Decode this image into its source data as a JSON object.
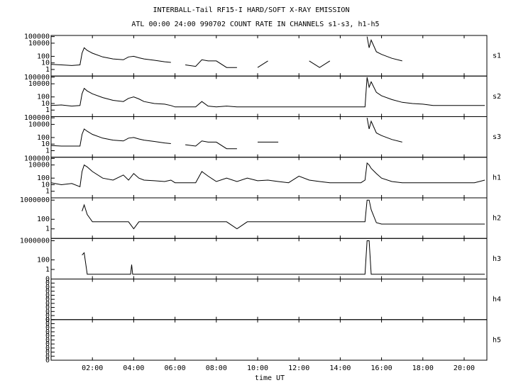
{
  "chart_data": [
    {
      "type": "line",
      "title": "INTERBALL-Tail RF15-I HARD/SOFT X-RAY EMISSION",
      "subtitle": "ATL 00:00 24:00 990702  COUNT RATE IN CHANNELS s1-s3, h1-h5",
      "label": "s1",
      "log": true,
      "color": "#000000",
      "ylim": [
        0.1,
        150000
      ],
      "yticks": [
        1,
        10,
        100,
        10000,
        100000
      ],
      "x": [
        0,
        0.5,
        1,
        1.4,
        1.5,
        1.6,
        1.75,
        2,
        2.5,
        3,
        3.5,
        3.75,
        4,
        4.25,
        4.5,
        5,
        5.5,
        5.8,
        6,
        6.5,
        7,
        7.3,
        7.6,
        8,
        8.5,
        9,
        9.5,
        10,
        10.5,
        11,
        11.5,
        12,
        12.5,
        13,
        13.5,
        14,
        14.5,
        15,
        15.2,
        15.3,
        15.4,
        15.5,
        15.75,
        16,
        16.5,
        17,
        17.5,
        18,
        18.5,
        19,
        19.5,
        20,
        20.5,
        21
      ],
      "values": [
        6,
        5,
        4,
        5,
        300,
        2000,
        800,
        300,
        80,
        40,
        30,
        80,
        100,
        60,
        40,
        25,
        15,
        12,
        null,
        5,
        3,
        30,
        20,
        20,
        2,
        2,
        null,
        2,
        20,
        null,
        20,
        null,
        20,
        2,
        20,
        null,
        20,
        null,
        null,
        100000,
        2000,
        30000,
        500,
        200,
        50,
        20,
        null,
        null,
        20,
        null,
        null,
        null,
        null,
        null
      ]
    },
    {
      "type": "line",
      "label": "s2",
      "log": true,
      "color": "#000000",
      "ylim": [
        0.1,
        150000
      ],
      "yticks": [
        1,
        10,
        100,
        10000,
        100000
      ],
      "x": [
        0,
        0.5,
        1,
        1.4,
        1.5,
        1.6,
        1.75,
        2,
        2.5,
        3,
        3.5,
        3.75,
        4,
        4.25,
        4.5,
        5,
        5.5,
        5.8,
        6,
        6.5,
        7,
        7.3,
        7.6,
        8,
        8.5,
        9,
        9.5,
        10,
        10.5,
        11,
        11.5,
        12,
        12.5,
        13,
        13.5,
        14,
        14.5,
        15,
        15.2,
        15.3,
        15.4,
        15.5,
        15.75,
        16,
        16.5,
        17,
        17.5,
        18,
        18.5,
        19,
        19.5,
        20,
        20.5,
        21
      ],
      "values": [
        5,
        6,
        4,
        5,
        300,
        2000,
        800,
        300,
        80,
        30,
        20,
        60,
        100,
        50,
        20,
        10,
        8,
        5,
        3,
        3,
        3,
        20,
        4,
        3,
        4,
        3,
        3,
        3,
        3,
        3,
        3,
        3,
        3,
        3,
        3,
        3,
        3,
        3,
        3,
        100000,
        3000,
        20000,
        500,
        150,
        40,
        15,
        10,
        8,
        5,
        5,
        5,
        5,
        5,
        5
      ]
    },
    {
      "type": "line",
      "label": "s3",
      "log": true,
      "color": "#000000",
      "ylim": [
        0.1,
        150000
      ],
      "yticks": [
        1,
        10,
        100,
        10000,
        100000
      ],
      "x": [
        0,
        0.5,
        1,
        1.4,
        1.5,
        1.6,
        1.75,
        2,
        2.5,
        3,
        3.5,
        3.75,
        4,
        4.25,
        4.5,
        5,
        5.5,
        5.8,
        6,
        6.5,
        7,
        7.3,
        7.6,
        8,
        8.5,
        9,
        9.5,
        10,
        10.5,
        11,
        11.5,
        12,
        12.5,
        13,
        13.5,
        14,
        14.5,
        15,
        15.2,
        15.3,
        15.4,
        15.5,
        15.75,
        16,
        16.5,
        17,
        17.5,
        18,
        18.5,
        19,
        19.5,
        20,
        20.5,
        21
      ],
      "values": [
        6,
        5,
        5,
        5,
        300,
        2000,
        900,
        300,
        80,
        40,
        30,
        80,
        100,
        60,
        40,
        25,
        15,
        12,
        null,
        8,
        5,
        30,
        20,
        20,
        2,
        2,
        null,
        20,
        20,
        20,
        null,
        null,
        null,
        null,
        null,
        null,
        null,
        null,
        null,
        100000,
        2000,
        30000,
        500,
        200,
        50,
        20,
        null,
        null,
        20,
        null,
        null,
        null,
        null,
        null
      ]
    },
    {
      "type": "line",
      "label": "h1",
      "log": true,
      "color": "#000000",
      "ylim": [
        0.1,
        150000
      ],
      "yticks": [
        1,
        10,
        100,
        10000,
        100000
      ],
      "x": [
        0,
        0.5,
        1,
        1.4,
        1.5,
        1.6,
        1.75,
        2,
        2.5,
        3,
        3.5,
        3.75,
        4,
        4.25,
        4.5,
        5,
        5.5,
        5.8,
        6,
        6.5,
        7,
        7.3,
        7.6,
        8,
        8.5,
        9,
        9.5,
        10,
        10.5,
        11,
        11.5,
        12,
        12.5,
        13,
        13.5,
        14,
        14.5,
        15,
        15.2,
        15.3,
        15.4,
        15.5,
        15.75,
        16,
        16.5,
        17,
        17.5,
        18,
        18.5,
        19,
        19.5,
        20,
        20.5,
        21
      ],
      "values": [
        20,
        10,
        15,
        5,
        1000,
        10000,
        5000,
        1000,
        100,
        50,
        300,
        50,
        500,
        100,
        50,
        40,
        30,
        50,
        20,
        20,
        20,
        1000,
        200,
        30,
        100,
        30,
        100,
        40,
        50,
        30,
        20,
        200,
        50,
        30,
        20,
        20,
        20,
        20,
        50,
        20000,
        10000,
        3000,
        500,
        100,
        30,
        20,
        20,
        20,
        20,
        20,
        20,
        20,
        20,
        50
      ]
    },
    {
      "type": "line",
      "label": "h2",
      "log": true,
      "color": "#000000",
      "ylim": [
        0.01,
        3000000
      ],
      "yticks": [
        1,
        100,
        1000000
      ],
      "x": [
        0,
        0.5,
        1,
        1.4,
        1.5,
        1.6,
        1.75,
        2,
        2.5,
        3,
        3.5,
        3.75,
        4,
        4.25,
        4.5,
        5,
        5.5,
        5.8,
        6,
        6.5,
        7,
        7.3,
        7.6,
        8,
        8.5,
        9,
        9.5,
        10,
        10.5,
        11,
        11.5,
        12,
        12.5,
        13,
        13.5,
        14,
        14.5,
        15,
        15.2,
        15.3,
        15.4,
        15.5,
        15.75,
        16,
        16.5,
        17,
        17.5,
        18,
        18.5,
        19,
        19.5,
        20,
        20.5,
        21
      ],
      "values": [
        null,
        null,
        null,
        null,
        5000,
        100000,
        1000,
        30,
        30,
        30,
        30,
        30,
        1,
        30,
        30,
        30,
        30,
        30,
        30,
        30,
        30,
        30,
        30,
        30,
        30,
        1,
        30,
        30,
        30,
        30,
        30,
        30,
        30,
        30,
        30,
        30,
        30,
        30,
        30,
        1000000,
        1000000,
        10000,
        20,
        10,
        10,
        10,
        10,
        10,
        10,
        10,
        10,
        10,
        10,
        10
      ]
    },
    {
      "type": "line",
      "label": "h3",
      "log": true,
      "color": "#000000",
      "ylim": [
        0.01,
        3000000
      ],
      "yticks": [
        1,
        100,
        1000000
      ],
      "x": [
        1.5,
        1.6,
        1.75,
        3.85,
        3.9,
        3.95,
        15.2,
        15.3,
        15.4,
        15.5,
        21
      ],
      "values": [
        1000,
        3000,
        0.1,
        0.1,
        10,
        0.1,
        0.1,
        1000000,
        1000000,
        0.1,
        0.1
      ]
    },
    {
      "type": "line",
      "label": "h4",
      "log": false,
      "color": "#000000",
      "ylim": [
        0,
        1
      ],
      "yticks": [
        {
          "value": 0,
          "label": "0"
        },
        {
          "value": 0.1,
          "label": "0"
        },
        {
          "value": 0.2,
          "label": "0"
        },
        {
          "value": 0.3,
          "label": "0"
        },
        {
          "value": 0.4,
          "label": "0"
        },
        {
          "value": 0.5,
          "label": "0"
        },
        {
          "value": 0.6,
          "label": "0"
        },
        {
          "value": 0.7,
          "label": "0"
        },
        {
          "value": 0.8,
          "label": "0"
        },
        {
          "value": 0.9,
          "label": "0"
        },
        {
          "value": 1,
          "label": "0"
        }
      ]
    },
    {
      "type": "line",
      "label": "h5",
      "log": false,
      "color": "#000000",
      "xlabel": "time UT",
      "ylim": [
        0,
        1
      ],
      "yticks": [
        {
          "value": 0,
          "label": "0"
        },
        {
          "value": 0.1,
          "label": "0"
        },
        {
          "value": 0.2,
          "label": "0"
        },
        {
          "value": 0.3,
          "label": "0"
        },
        {
          "value": 0.4,
          "label": "0"
        },
        {
          "value": 0.5,
          "label": "0"
        },
        {
          "value": 0.6,
          "label": "0"
        },
        {
          "value": 0.7,
          "label": "0"
        },
        {
          "value": 0.8,
          "label": "0"
        },
        {
          "value": 0.9,
          "label": "0"
        },
        {
          "value": 1,
          "label": "0"
        }
      ],
      "xlim": [
        0,
        21.1
      ],
      "xticks": [
        {
          "value": 2,
          "label": "02:00"
        },
        {
          "value": 4,
          "label": "04:00"
        },
        {
          "value": 6,
          "label": "06:00"
        },
        {
          "value": 8,
          "label": "08:00"
        },
        {
          "value": 10,
          "label": "10:00"
        },
        {
          "value": 12,
          "label": "12:00"
        },
        {
          "value": 14,
          "label": "14:00"
        },
        {
          "value": 16,
          "label": "16:00"
        },
        {
          "value": 18,
          "label": "18:00"
        },
        {
          "value": 20,
          "label": "20:00"
        }
      ]
    }
  ]
}
